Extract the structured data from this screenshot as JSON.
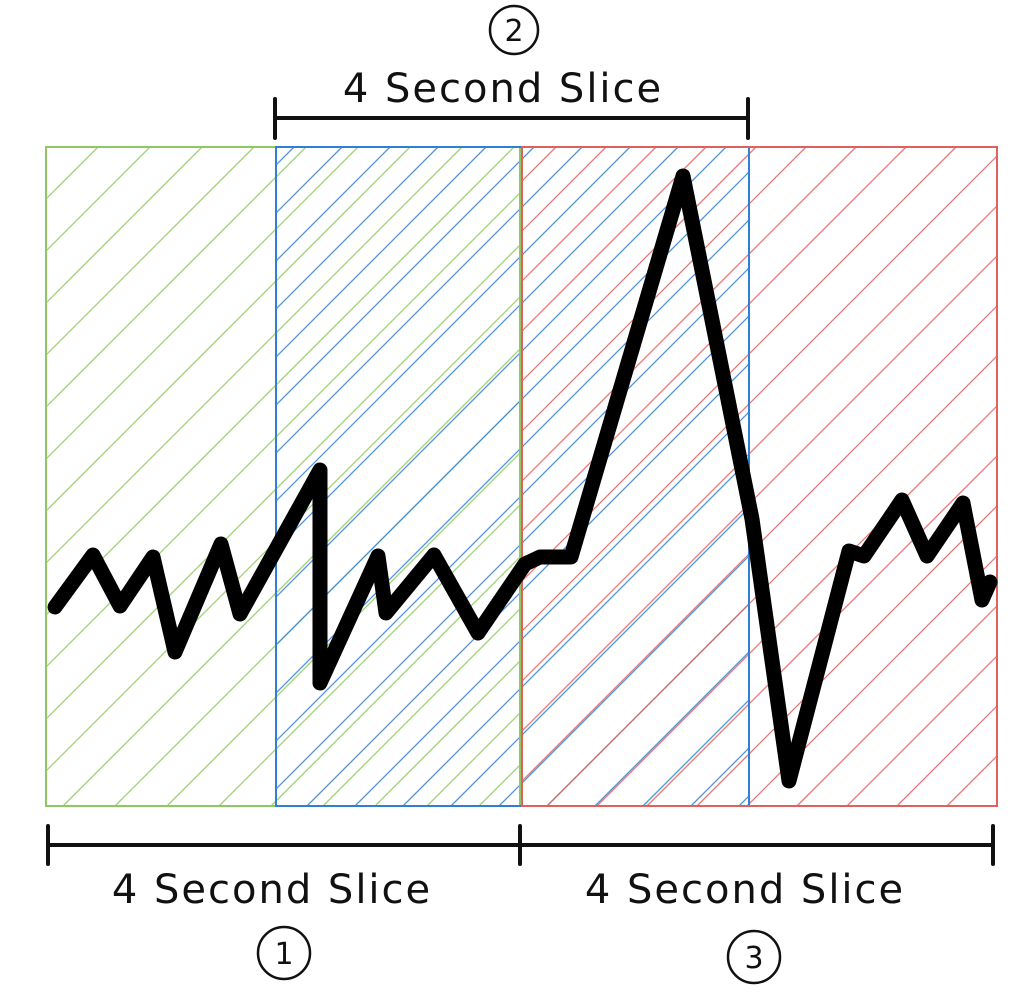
{
  "slices": [
    {
      "number": "1",
      "label": "4 Second Slice",
      "color": "#8fc862"
    },
    {
      "number": "2",
      "label": "4 Second Slice",
      "color": "#2f7fd6"
    },
    {
      "number": "3",
      "label": "4 Second Slice",
      "color": "#e06060"
    }
  ],
  "colors": {
    "waveform": "#000000",
    "bracket": "#111111"
  }
}
